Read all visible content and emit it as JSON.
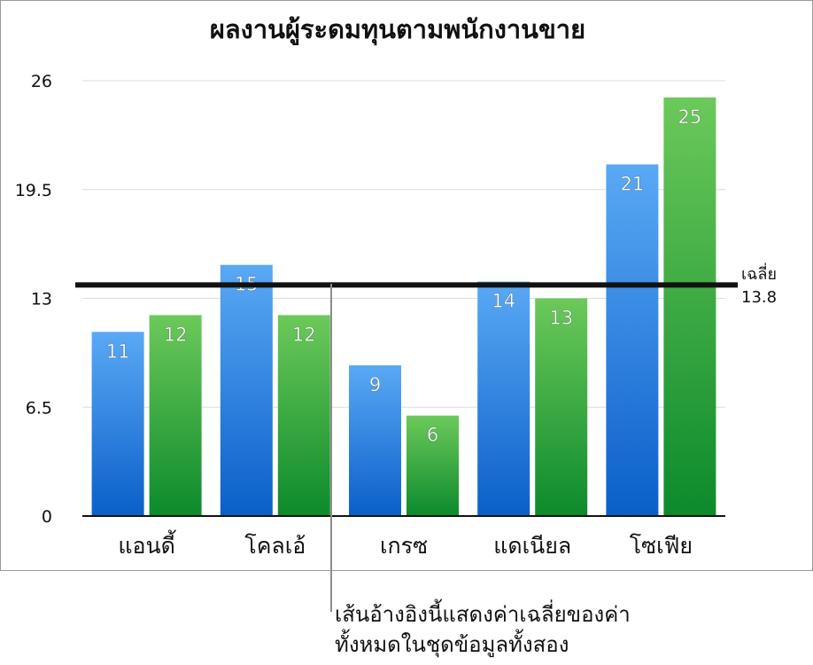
{
  "chart_data": {
    "type": "bar",
    "title": "ผลงานผู้ระดมทุนตามพนักงานขาย",
    "xlabel": "",
    "ylabel": "",
    "categories": [
      "แอนดี้",
      "โคลเอ้",
      "เกรซ",
      "แดเนียล",
      "โซเฟีย"
    ],
    "series": [
      {
        "values": [
          11,
          15,
          9,
          14,
          21
        ],
        "color_top": "#5aa9f5",
        "color_bottom": "#0a5fc9"
      },
      {
        "values": [
          12,
          12,
          6,
          13,
          25
        ],
        "color_top": "#6cc95a",
        "color_bottom": "#0c8a2c"
      }
    ],
    "ylim": [
      0,
      26
    ],
    "yticks": [
      0,
      6.5,
      13,
      19.5,
      26
    ],
    "ytick_labels": [
      "0",
      "6.5",
      "13",
      "19.5",
      "26"
    ],
    "grid": true,
    "data_labels": true,
    "reference_line": {
      "value": 13.8,
      "label": "เฉลี่ย",
      "value_label": "13.8"
    }
  },
  "callout": {
    "line1": "เส้นอ้างอิงนี้แสดงค่าเฉลี่ยของค่า",
    "line2": "ทั้งหมดในชุดข้อมูลทั้งสอง"
  }
}
